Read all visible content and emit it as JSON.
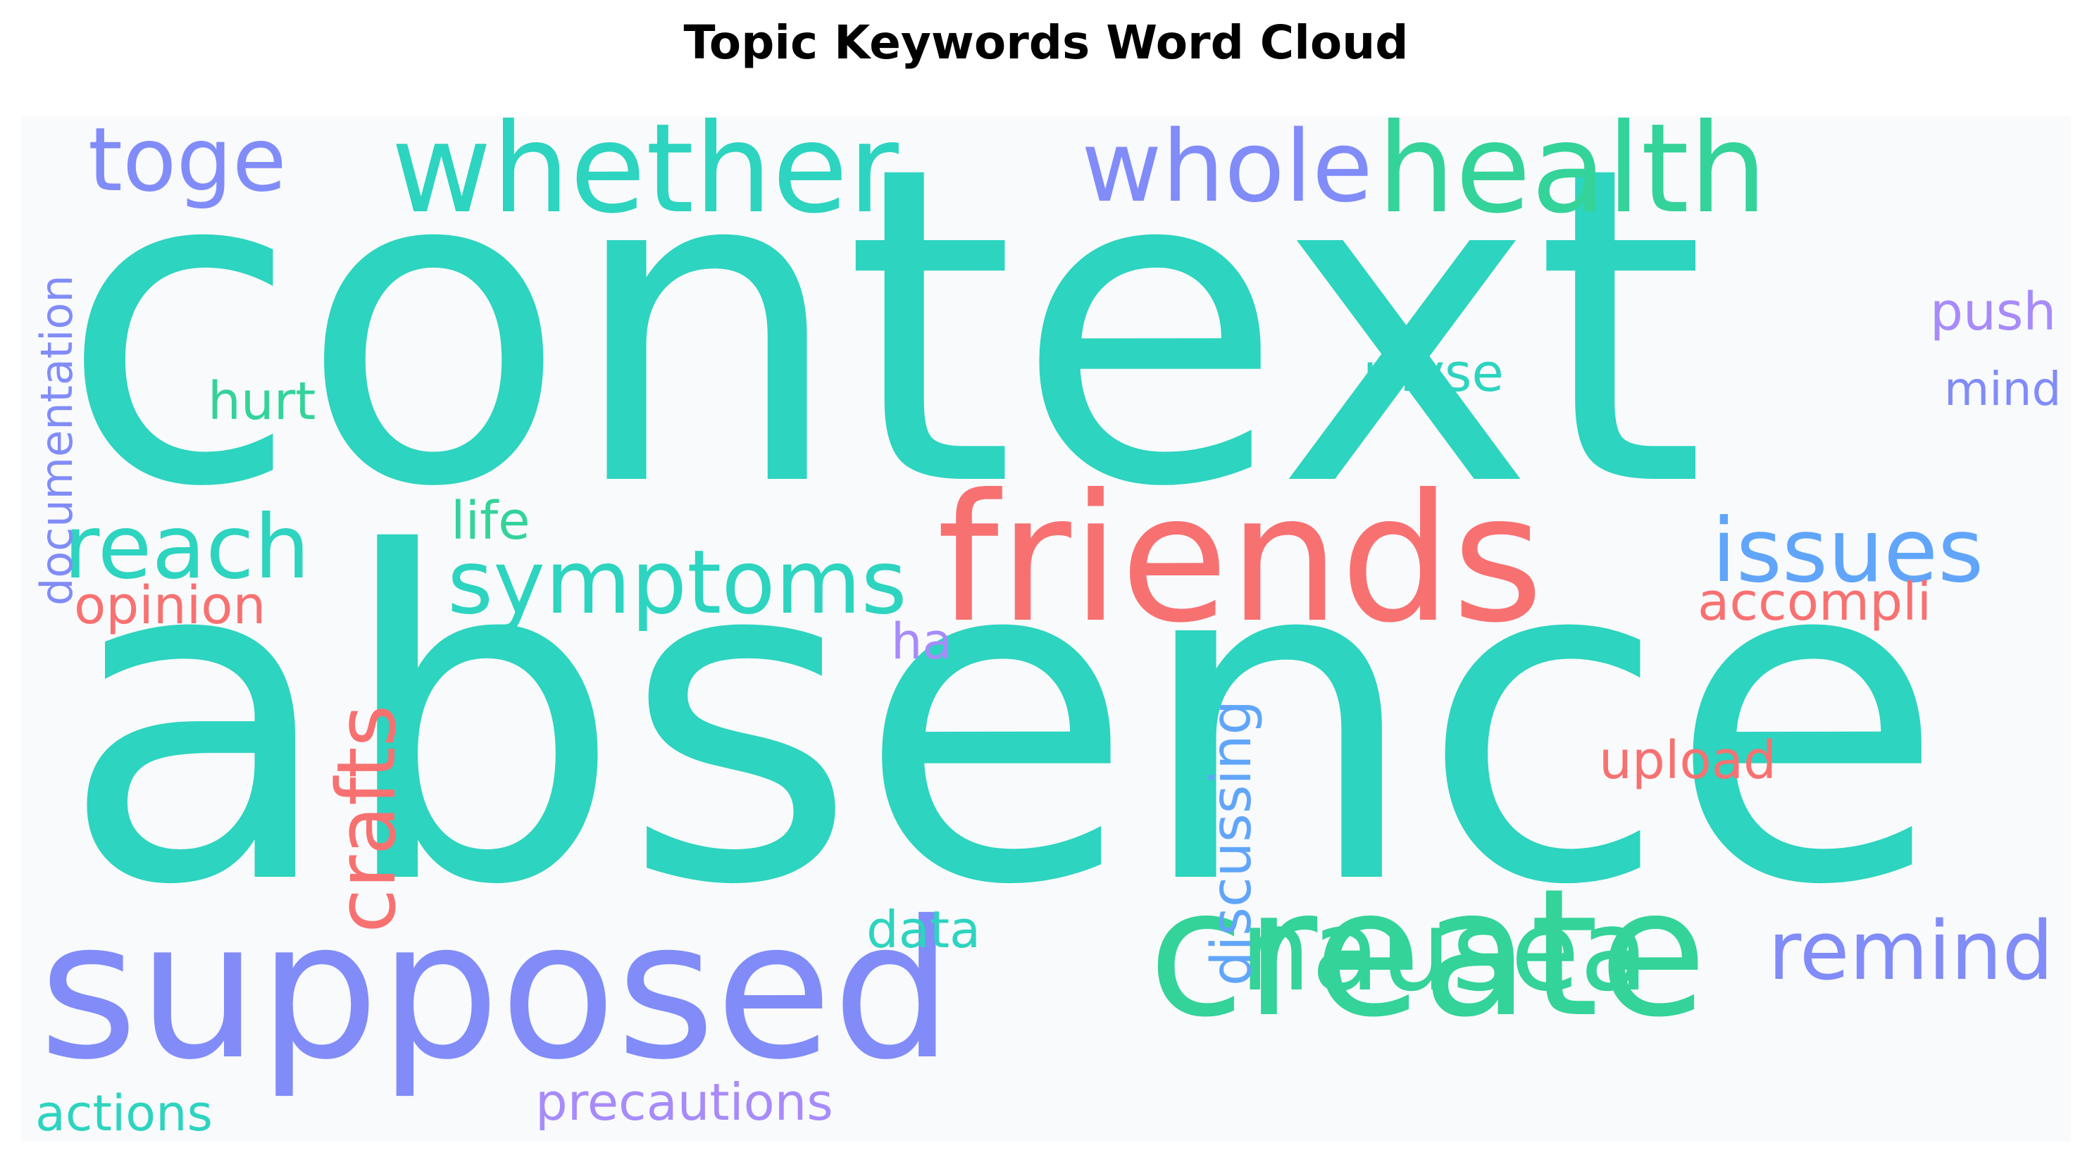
{
  "chart_data": {
    "type": "wordcloud",
    "title": "Topic Keywords Word Cloud",
    "background": "#f8fafc",
    "words": [
      {
        "text": "context",
        "color": "#2dd4bf"
      },
      {
        "text": "absence",
        "color": "#2dd4bf"
      },
      {
        "text": "supposed",
        "color": "#818cf8"
      },
      {
        "text": "create",
        "color": "#34d399"
      },
      {
        "text": "friends",
        "color": "#f87171"
      },
      {
        "text": "whether",
        "color": "#2dd4bf"
      },
      {
        "text": "health",
        "color": "#34d399"
      },
      {
        "text": "nausea",
        "color": "#34d399"
      },
      {
        "text": "whole",
        "color": "#818cf8"
      },
      {
        "text": "reach",
        "color": "#2dd4bf"
      },
      {
        "text": "symptoms",
        "color": "#2dd4bf"
      },
      {
        "text": "toge",
        "color": "#818cf8"
      },
      {
        "text": "issues",
        "color": "#60a5fa"
      },
      {
        "text": "remind",
        "color": "#818cf8"
      },
      {
        "text": "crafts",
        "color": "#f87171"
      },
      {
        "text": "discussing",
        "color": "#60a5fa"
      },
      {
        "text": "documentation",
        "color": "#818cf8"
      },
      {
        "text": "upload",
        "color": "#f87171"
      },
      {
        "text": "accompli",
        "color": "#f87171"
      },
      {
        "text": "opinion",
        "color": "#f87171"
      },
      {
        "text": "push",
        "color": "#a78bfa"
      },
      {
        "text": "precautions",
        "color": "#a78bfa"
      },
      {
        "text": "hurt",
        "color": "#34d399"
      },
      {
        "text": "myse",
        "color": "#2dd4bf"
      },
      {
        "text": "life",
        "color": "#34d399"
      },
      {
        "text": "data",
        "color": "#2dd4bf"
      },
      {
        "text": "actions",
        "color": "#2dd4bf"
      },
      {
        "text": "mind",
        "color": "#818cf8"
      },
      {
        "text": "ha",
        "color": "#a78bfa"
      }
    ]
  }
}
